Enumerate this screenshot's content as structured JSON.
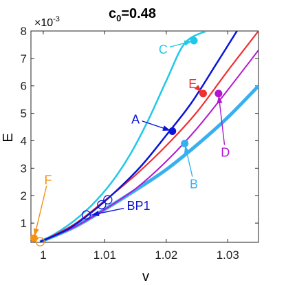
{
  "chart_data": {
    "type": "line",
    "title_main": "c",
    "title_sub": "0",
    "title_value": "=0.48",
    "xlabel": "v",
    "ylabel": "E",
    "y_exponent_base": "×10",
    "y_exponent_power": "-3",
    "xlim": [
      0.998,
      1.035
    ],
    "ylim": [
      0.3,
      8.0
    ],
    "x_ticks": [
      1.0,
      1.01,
      1.02,
      1.03
    ],
    "x_tick_labels": [
      "1",
      "1.01",
      "1.02",
      "1.03"
    ],
    "y_ticks": [
      1,
      2,
      3,
      4,
      5,
      6,
      7,
      8
    ],
    "y_tick_labels": [
      "1",
      "2",
      "3",
      "4",
      "5",
      "6",
      "7",
      "8"
    ],
    "grid": false,
    "series": [
      {
        "id": "cyan",
        "color": "#1fc8e8",
        "width": 2.5,
        "x": [
          0.9995,
          1.002,
          1.005,
          1.008,
          1.011,
          1.014,
          1.017,
          1.02,
          1.023,
          1.0265
        ],
        "y": [
          0.32,
          0.62,
          1.08,
          1.68,
          2.45,
          3.45,
          4.72,
          6.18,
          7.55,
          8.0
        ]
      },
      {
        "id": "red",
        "color": "#f03030",
        "width": 2.2,
        "x": [
          0.9995,
          1.005,
          1.01,
          1.015,
          1.02,
          1.025,
          1.03,
          1.035
        ],
        "y": [
          0.32,
          0.95,
          1.82,
          2.75,
          3.82,
          5.05,
          6.55,
          8.0
        ]
      },
      {
        "id": "blue",
        "color": "#0a14d6",
        "width": 2.5,
        "x": [
          0.9995,
          1.004,
          1.008,
          1.012,
          1.016,
          1.02,
          1.024,
          1.028,
          1.0315
        ],
        "y": [
          0.32,
          0.78,
          1.42,
          2.2,
          3.1,
          4.2,
          5.35,
          6.75,
          8.0
        ]
      },
      {
        "id": "purple",
        "color": "#b216d0",
        "width": 2.0,
        "x": [
          0.9995,
          1.005,
          1.01,
          1.015,
          1.02,
          1.025,
          1.03,
          1.035
        ],
        "y": [
          0.32,
          0.85,
          1.5,
          2.25,
          3.25,
          4.45,
          5.85,
          7.3
        ]
      },
      {
        "id": "lightblue-thick",
        "color": "#38b0f0",
        "width": 5.0,
        "x": [
          0.9995,
          1.005,
          1.01,
          1.015,
          1.02,
          1.025,
          1.03,
          1.035
        ],
        "y": [
          0.32,
          0.85,
          1.5,
          2.2,
          2.95,
          3.85,
          4.85,
          6.0
        ]
      }
    ],
    "points": [
      {
        "label": "A",
        "color": "#0a14d6",
        "x": 1.021,
        "y": 4.35,
        "label_x": 1.015,
        "label_y": 4.8
      },
      {
        "label": "B",
        "color": "#38b0f0",
        "x": 1.023,
        "y": 3.9,
        "label_x": 1.0245,
        "label_y": 2.45
      },
      {
        "label": "C",
        "color": "#1fc8e8",
        "x": 1.0245,
        "y": 7.65,
        "label_x": 1.0195,
        "label_y": 7.35
      },
      {
        "label": "D",
        "color": "#b216d0",
        "x": 1.0285,
        "y": 5.72,
        "label_x": 1.0296,
        "label_y": 3.6
      },
      {
        "label": "E",
        "color": "#f03030",
        "x": 1.026,
        "y": 5.72,
        "label_x": 1.0243,
        "label_y": 6.1
      },
      {
        "label": "F",
        "color": "#f59010",
        "x": 0.9985,
        "y": 0.45,
        "label_x": 1.0008,
        "label_y": 2.6
      },
      {
        "label": "BP1",
        "color": "#0a14d6",
        "x": 1.0075,
        "y": 1.28,
        "label_x": 1.0155,
        "label_y": 1.65
      }
    ],
    "hollow_markers": [
      {
        "color": "#0a14d6",
        "x": 1.007,
        "y": 1.3
      },
      {
        "color": "#0a14d6",
        "x": 1.0095,
        "y": 1.67
      },
      {
        "color": "#0a14d6",
        "x": 1.0105,
        "y": 1.85
      },
      {
        "color": "#f59010",
        "x": 0.9995,
        "y": 0.32
      }
    ]
  }
}
